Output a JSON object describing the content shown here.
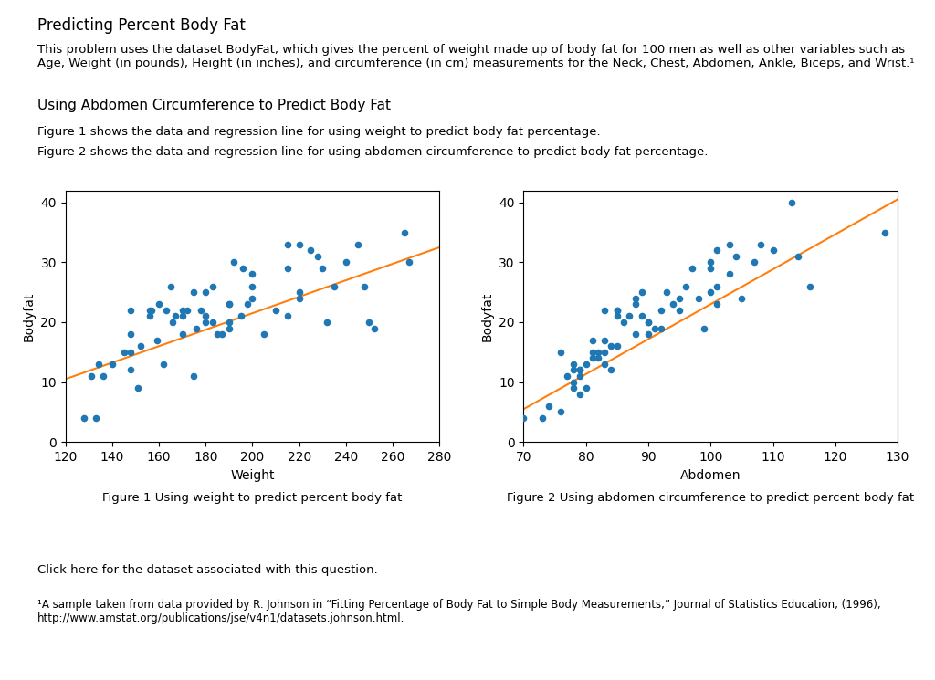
{
  "title": "Predicting Percent Body Fat",
  "subtitle": "Using Abdomen Circumference to Predict Body Fat",
  "annotations": [
    "This problem uses the dataset BodyFat, which gives the percent of weight made up of body fat for 100 men as well as other variables such as Age, Weight (in pounds), Height (in inches), and circumference (in cm) measurements for the Neck, Chest, Abdomen, Ankle, Biceps, and Wrist.¹",
    "Figure 1 shows the data and regression line for using weight to predict body fat percentage.",
    "Figure 2 shows the data and regression line for using abdomen circumference to predict body fat percentage.",
    "Click here for the dataset associated with this question.",
    "¹A sample taken from data provided by R. Johnson in “Fitting Percentage of Body Fat to Simple Body Measurements,” Journal of Statistics Education, (1996), http://www.amstat.org/publications/jse/v4n1/datasets.johnson.html."
  ],
  "chart_data": [
    {
      "type": "scatter",
      "title": "Figure 1 Using weight to predict percent body fat",
      "x_label": "Weight",
      "y_label": "Bodyfat",
      "xlim": [
        120,
        280
      ],
      "xticks": [
        120,
        140,
        160,
        180,
        200,
        220,
        240,
        260,
        280
      ],
      "ylim": [
        0,
        42
      ],
      "yticks": [
        0,
        10,
        20,
        30,
        40
      ],
      "grid": false,
      "series": [
        {
          "type": "scatter",
          "x": [
            128,
            145,
            133,
            148,
            159,
            131,
            134,
            148,
            136,
            148,
            140,
            148,
            152,
            151,
            156,
            157,
            156,
            160,
            162,
            163,
            165,
            166,
            167,
            170,
            170,
            170,
            172,
            175,
            175,
            176,
            178,
            180,
            180,
            180,
            183,
            183,
            185,
            187,
            190,
            190,
            190,
            190,
            192,
            195,
            196,
            198,
            200,
            200,
            200,
            205,
            210,
            215,
            215,
            215,
            220,
            220,
            220,
            225,
            228,
            230,
            232,
            235,
            240,
            245,
            248,
            250,
            252,
            265,
            267
          ],
          "values": [
            4,
            15,
            4,
            15,
            17,
            11,
            13,
            12,
            11,
            18,
            13,
            22,
            16,
            9,
            22,
            22,
            21,
            23,
            13,
            22,
            26,
            20,
            21,
            18,
            22,
            21,
            22,
            11,
            25,
            19,
            22,
            20,
            21,
            25,
            26,
            20,
            18,
            18,
            20,
            23,
            23,
            19,
            30,
            21,
            29,
            23,
            24,
            26,
            28,
            18,
            22,
            21,
            29,
            33,
            24,
            25,
            33,
            32,
            31,
            29,
            20,
            26,
            30,
            33,
            26,
            20,
            19,
            35,
            30
          ]
        },
        {
          "type": "line",
          "x": [
            120,
            280
          ],
          "values": [
            10.5,
            32.5
          ]
        }
      ]
    },
    {
      "type": "scatter",
      "title": "Figure 2 Using abdomen circumference to predict percent body fat",
      "x_label": "Abdomen",
      "y_label": "Bodyfat",
      "xlim": [
        70,
        130
      ],
      "xticks": [
        70,
        80,
        90,
        100,
        110,
        120,
        130
      ],
      "ylim": [
        0,
        42
      ],
      "yticks": [
        0,
        10,
        20,
        30,
        40
      ],
      "grid": false,
      "series": [
        {
          "type": "scatter",
          "x": [
            70,
            73,
            74,
            76,
            76,
            77,
            78,
            78,
            78,
            78,
            79,
            79,
            79,
            79,
            80,
            80,
            81,
            81,
            81,
            82,
            82,
            83,
            83,
            83,
            83,
            84,
            84,
            85,
            85,
            85,
            85,
            86,
            87,
            88,
            88,
            88,
            89,
            89,
            90,
            90,
            90,
            91,
            92,
            92,
            93,
            94,
            95,
            95,
            96,
            97,
            98,
            99,
            100,
            100,
            100,
            101,
            101,
            101,
            103,
            103,
            104,
            105,
            107,
            108,
            110,
            113,
            114,
            116,
            128
          ],
          "values": [
            4,
            4,
            6,
            5,
            15,
            11,
            10,
            9,
            13,
            12,
            11,
            12,
            8,
            12,
            9,
            13,
            15,
            14,
            17,
            15,
            14,
            15,
            13,
            17,
            22,
            16,
            12,
            22,
            22,
            16,
            21,
            20,
            21,
            18,
            24,
            23,
            25,
            21,
            18,
            20,
            20,
            19,
            19,
            22,
            25,
            23,
            24,
            22,
            26,
            29,
            24,
            19,
            25,
            30,
            29,
            23,
            32,
            26,
            33,
            28,
            31,
            24,
            30,
            33,
            32,
            40,
            31,
            26,
            35
          ]
        },
        {
          "type": "line",
          "x": [
            70,
            130
          ],
          "values": [
            5.5,
            40.5
          ]
        }
      ]
    }
  ]
}
